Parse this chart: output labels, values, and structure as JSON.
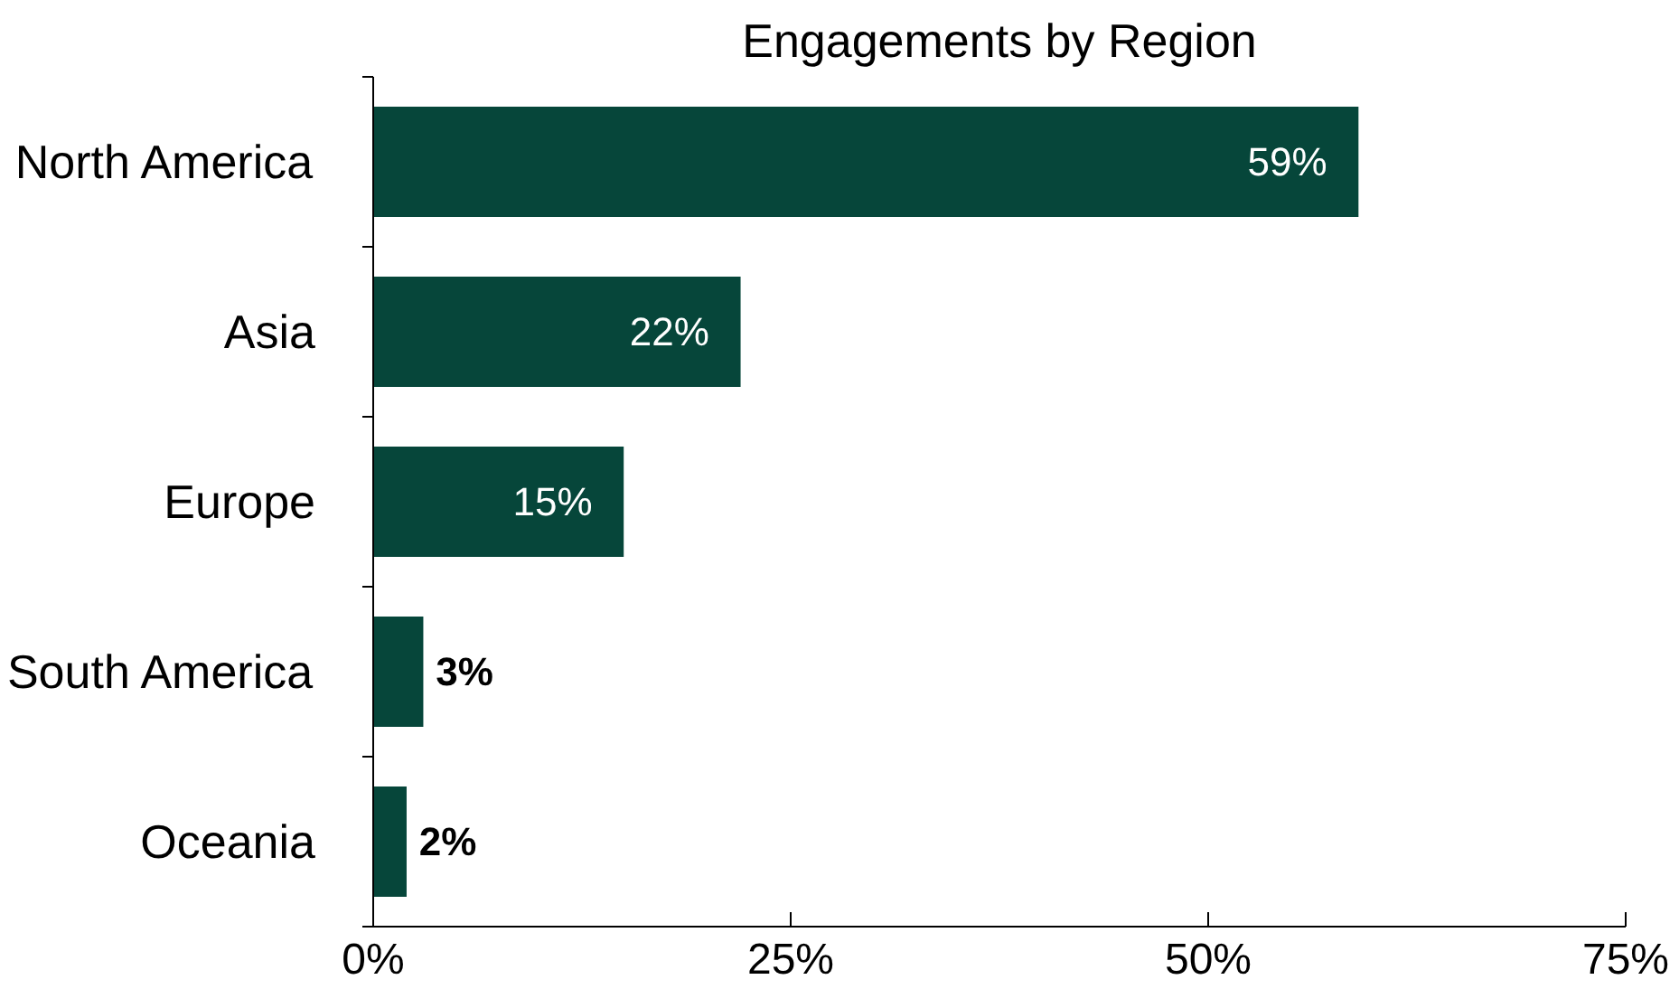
{
  "chart_data": {
    "type": "bar",
    "orientation": "horizontal",
    "title": "Engagements by Region",
    "categories": [
      "North America",
      "Asia",
      "Europe",
      "South America",
      "Oceania"
    ],
    "values": [
      59,
      22,
      15,
      3,
      2
    ],
    "value_labels": [
      "59%",
      "22%",
      "15%",
      "3%",
      "2%"
    ],
    "color": "#06463a",
    "xlim": [
      0,
      75
    ],
    "xticks": [
      {
        "value": 0,
        "label": "0%"
      },
      {
        "value": 25,
        "label": "25%"
      },
      {
        "value": 50,
        "label": "50%"
      },
      {
        "value": 75,
        "label": "75%"
      }
    ],
    "grid": false
  }
}
